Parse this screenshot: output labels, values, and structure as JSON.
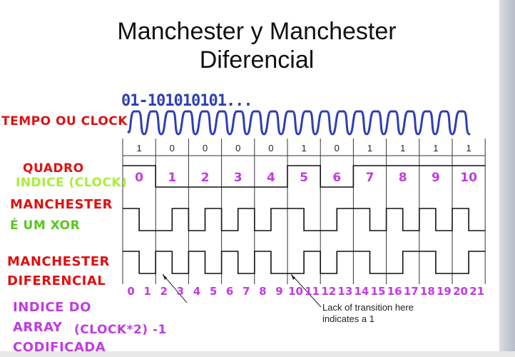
{
  "title_line1": "Manchester y Manchester",
  "title_line2": "Diferencial",
  "handwritten_bits": "01-101010101...",
  "labels": {
    "tempo": "TEMPO OU CLOCK",
    "quadro": "QUADRO",
    "indice_clock": "INDICE (CLOCK)",
    "manchester": "MANCHESTER",
    "xor": "É UM XOR",
    "manchester_dif_1": "MANCHESTER",
    "manchester_dif_2": "DIFERENCIAL",
    "indice_array_1": "INDICE DO",
    "indice_array_2": "ARRAY",
    "clock_formula": "(CLOCK*2) -1",
    "codificada": "CODIFICADA"
  },
  "note": {
    "line1": "Lack of transition here",
    "line2": "indicates a 1"
  },
  "bits": [
    "1",
    "0",
    "0",
    "0",
    "0",
    "1",
    "0",
    "1",
    "1",
    "1",
    "1"
  ],
  "frame_indices": [
    "0",
    "1",
    "2",
    "3",
    "4",
    "5",
    "6",
    "7",
    "8",
    "9",
    "10"
  ],
  "array_indices": [
    "0",
    "1",
    "2",
    "3",
    "4",
    "5",
    "6",
    "7",
    "8",
    "9",
    "10",
    "11",
    "12",
    "13",
    "14",
    "15",
    "16",
    "17",
    "18",
    "19",
    "20",
    "21"
  ],
  "colors": {
    "red": "#e01010",
    "green": "#a8ee3a",
    "purple": "#c03ce0",
    "ink_blue": "#2d3fb4"
  }
}
